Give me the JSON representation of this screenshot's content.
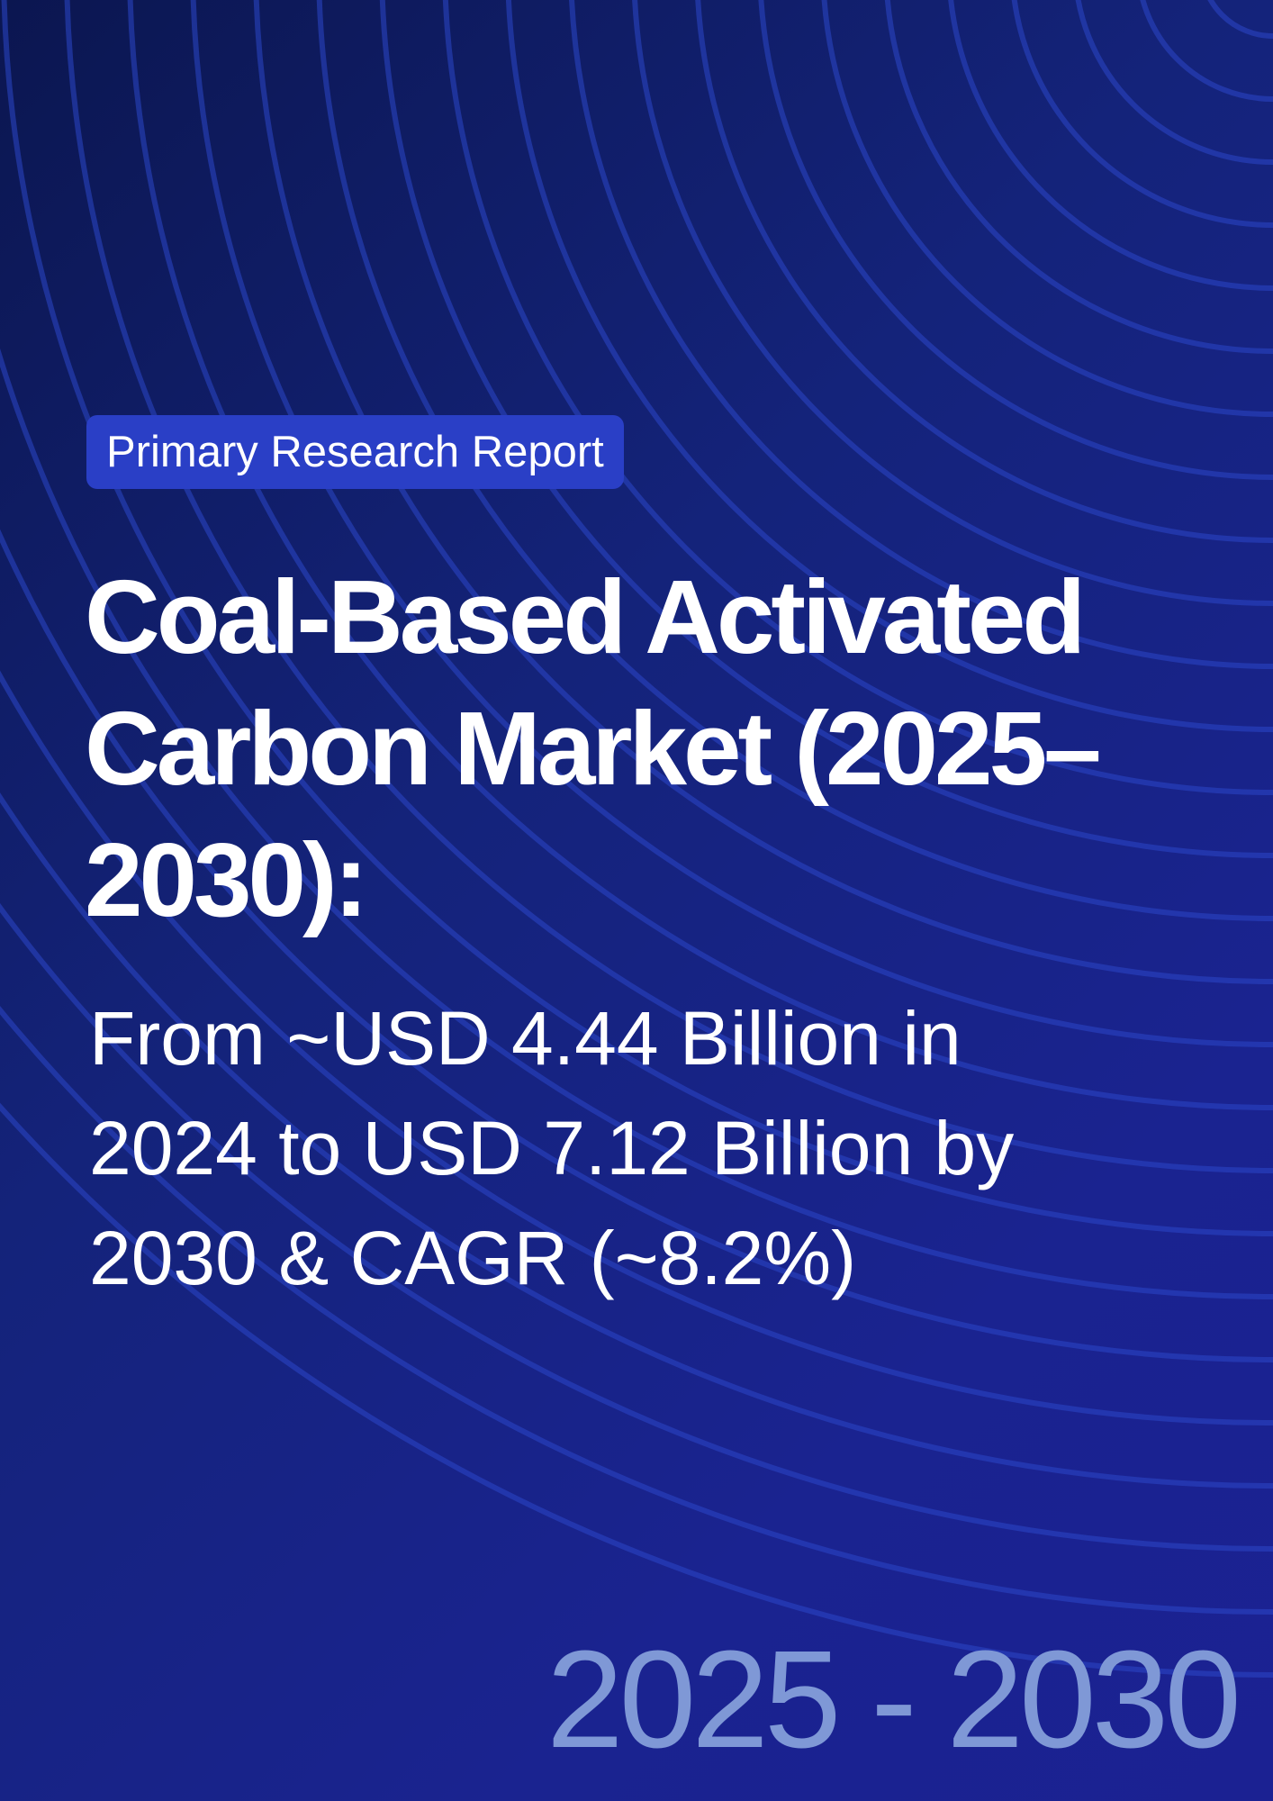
{
  "badge": {
    "label": "Primary Research Report"
  },
  "title": {
    "line1": "Coal-Based Activated",
    "line2": "Carbon Market (2025–",
    "line3": "2030):"
  },
  "subtitle": {
    "line1": "From ~USD 4.44 Billion in",
    "line2": "2024 to USD 7.12 Billion by",
    "line3": "2030 & CAGR (~8.2%)"
  },
  "footer": {
    "years": "2025 - 2030"
  },
  "colors": {
    "background_dark": "#0b1650",
    "background_blue": "#1b2192",
    "badge": "#2a3fc6",
    "arc_lines": "#2b47c9",
    "years_text": "#7f98d6"
  }
}
